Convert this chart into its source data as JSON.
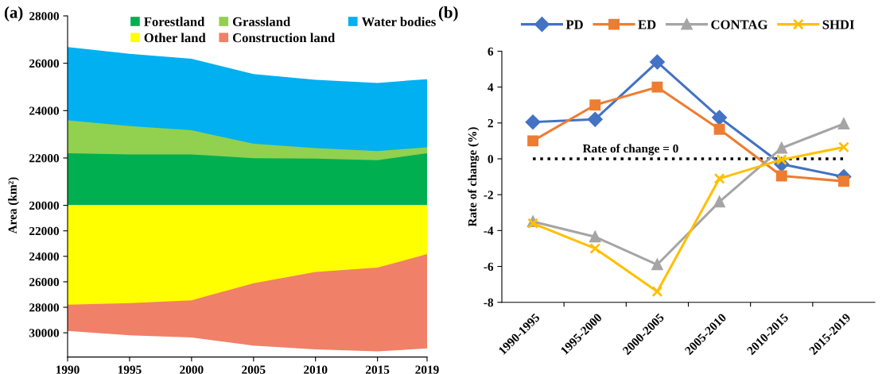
{
  "chart_data": [
    {
      "type": "area",
      "title": "(a)",
      "ylabel": "Area (km²)",
      "x": [
        1990,
        1995,
        2000,
        2005,
        2010,
        2015,
        2019
      ],
      "xlim": [
        1990,
        2019
      ],
      "ylim": [
        20000,
        28000
      ],
      "yticks": [
        22000,
        24000,
        26000,
        28000
      ],
      "tick_labels": "y",
      "legend": "top",
      "grid": false,
      "series": [
        {
          "name": "Forestland",
          "color": "#00b050",
          "values": [
            22200,
            22150,
            22150,
            21990,
            21970,
            21910,
            22200
          ]
        },
        {
          "name": "Grassland",
          "color": "#92d050",
          "values": [
            23590,
            23350,
            23170,
            22600,
            22420,
            22290,
            22450
          ]
        },
        {
          "name": "Water bodies",
          "color": "#00b0f0",
          "values": [
            26680,
            26400,
            26190,
            25540,
            25300,
            25170,
            25330
          ]
        }
      ]
    },
    {
      "type": "area",
      "x": [
        1990,
        1995,
        2000,
        2005,
        2010,
        2015,
        2019
      ],
      "xlim": [
        1990,
        2019
      ],
      "xticks": [
        1990,
        1995,
        2000,
        2005,
        2010,
        2015,
        2019
      ],
      "ylim": [
        31900,
        20000
      ],
      "yticks": [
        20000,
        22000,
        24000,
        26000,
        28000,
        30000
      ],
      "legend": "top",
      "grid": false,
      "series": [
        {
          "name": "Other land",
          "color": "#ffff00",
          "values": [
            27790,
            27680,
            27450,
            26120,
            25230,
            24890,
            23830
          ]
        },
        {
          "name": "Construction land",
          "color": "#f08068",
          "values": [
            29860,
            30190,
            30370,
            31010,
            31300,
            31460,
            31230
          ]
        }
      ]
    },
    {
      "type": "line",
      "title": "(b)",
      "ylabel": "Rate of change (%)",
      "categories": [
        "1990-1995",
        "1995-2000",
        "2000-2005",
        "2005-2010",
        "2010-2015",
        "2015-2019"
      ],
      "ylim": [
        -8,
        6
      ],
      "yticks": [
        -8,
        -6,
        -4,
        -2,
        0,
        2,
        4,
        6
      ],
      "legend": "top",
      "grid": false,
      "line_style": "solid",
      "ref_lines": [
        {
          "axis": "y",
          "value": 0,
          "label": "Rate of change = 0",
          "color": "#000000",
          "line_style": "dotted"
        }
      ],
      "series": [
        {
          "name": "PD",
          "color": "#4472c4",
          "marker": "diamond",
          "values": [
            2.05,
            2.2,
            5.4,
            2.3,
            -0.3,
            -1.0
          ]
        },
        {
          "name": "ED",
          "color": "#ed7d31",
          "marker": "square",
          "values": [
            1.0,
            3.0,
            4.0,
            1.65,
            -0.95,
            -1.25
          ]
        },
        {
          "name": "CONTAG",
          "color": "#a5a5a5",
          "marker": "triangle",
          "values": [
            -3.5,
            -4.35,
            -5.9,
            -2.4,
            0.6,
            1.95
          ]
        },
        {
          "name": "SHDI",
          "color": "#ffc000",
          "marker": "cross",
          "values": [
            -3.6,
            -5.0,
            -7.4,
            -1.1,
            -0.05,
            0.65
          ]
        }
      ]
    }
  ]
}
